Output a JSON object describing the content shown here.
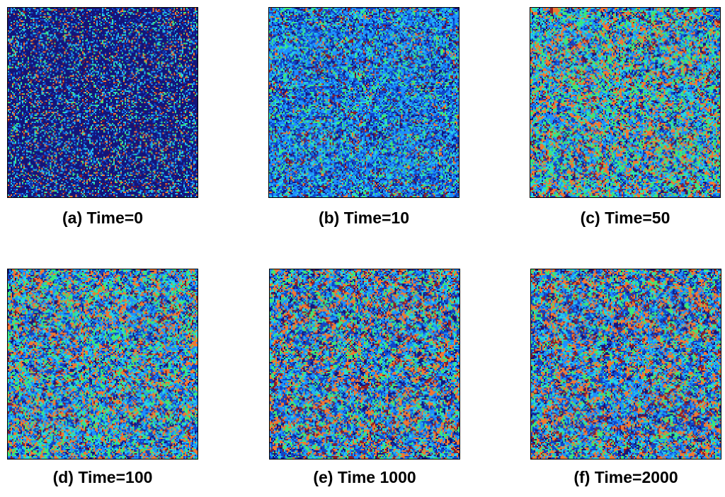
{
  "colors": {
    "dark_navy": "#14147a",
    "blue": "#1046c8",
    "sky_blue": "#1e90ff",
    "cyan": "#28d2e6",
    "green": "#3ce678",
    "orange": "#f07832",
    "dark_red": "#8c1e28",
    "slate": "#5a78a0"
  },
  "panels": [
    {
      "caption": "(a) Time=0",
      "weights": {
        "dark_navy": 0.62,
        "blue": 0.1,
        "sky_blue": 0.06,
        "cyan": 0.07,
        "green": 0.05,
        "orange": 0.06,
        "dark_red": 0.04
      },
      "blob_scale": 0
    },
    {
      "caption": "(b) Time=10",
      "weights": {
        "dark_navy": 0.1,
        "blue": 0.26,
        "sky_blue": 0.3,
        "cyan": 0.12,
        "green": 0.12,
        "orange": 0.04,
        "dark_red": 0.06
      },
      "blob_scale": 1
    },
    {
      "caption": "(c) Time=50",
      "weights": {
        "dark_navy": 0.06,
        "blue": 0.14,
        "sky_blue": 0.2,
        "cyan": 0.12,
        "green": 0.22,
        "orange": 0.2,
        "dark_red": 0.06
      },
      "blob_scale": 2
    },
    {
      "caption": "(d) Time=100",
      "weights": {
        "dark_navy": 0.06,
        "blue": 0.18,
        "sky_blue": 0.2,
        "cyan": 0.12,
        "green": 0.18,
        "orange": 0.2,
        "dark_red": 0.06
      },
      "blob_scale": 2
    },
    {
      "caption": "(e) Time 1000",
      "weights": {
        "dark_navy": 0.1,
        "blue": 0.18,
        "sky_blue": 0.2,
        "cyan": 0.1,
        "green": 0.14,
        "orange": 0.2,
        "dark_red": 0.08
      },
      "blob_scale": 3
    },
    {
      "caption": "(f) Time=2000",
      "weights": {
        "dark_navy": 0.08,
        "blue": 0.2,
        "sky_blue": 0.2,
        "cyan": 0.1,
        "green": 0.14,
        "orange": 0.2,
        "dark_red": 0.08
      },
      "blob_scale": 3
    }
  ]
}
